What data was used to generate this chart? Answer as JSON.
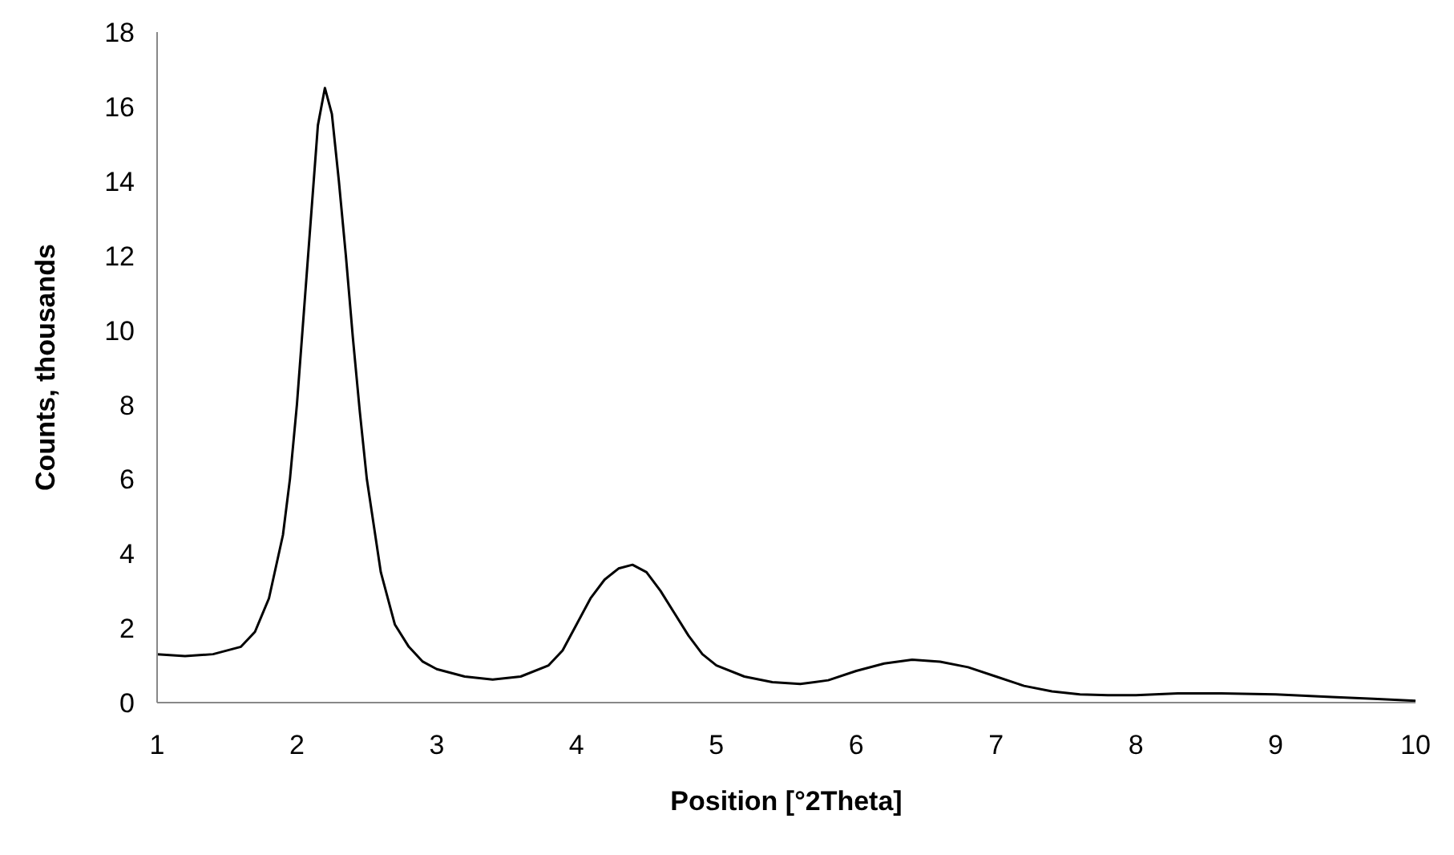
{
  "chart_data": {
    "type": "line",
    "xlabel": "Position [°2Theta]",
    "ylabel": "Counts, thousands",
    "xlim": [
      1,
      10
    ],
    "xticks": [
      1,
      2,
      3,
      4,
      5,
      6,
      7,
      8,
      9,
      10
    ],
    "ylim": [
      0,
      18
    ],
    "yticks": [
      0,
      2,
      4,
      6,
      8,
      10,
      12,
      14,
      16,
      18
    ],
    "grid": false,
    "legend": false,
    "marker": "none",
    "line_style": "solid",
    "series": [
      {
        "color": "#000000",
        "x": [
          1.0,
          1.2,
          1.4,
          1.6,
          1.7,
          1.8,
          1.9,
          1.95,
          2.0,
          2.05,
          2.1,
          2.15,
          2.2,
          2.25,
          2.3,
          2.35,
          2.4,
          2.45,
          2.5,
          2.6,
          2.7,
          2.8,
          2.9,
          3.0,
          3.2,
          3.4,
          3.6,
          3.8,
          3.9,
          4.0,
          4.1,
          4.2,
          4.3,
          4.4,
          4.5,
          4.6,
          4.7,
          4.8,
          4.9,
          5.0,
          5.2,
          5.4,
          5.6,
          5.8,
          6.0,
          6.2,
          6.4,
          6.6,
          6.8,
          7.0,
          7.2,
          7.4,
          7.6,
          7.8,
          8.0,
          8.3,
          8.6,
          9.0,
          9.4,
          9.7,
          10.0
        ],
        "values": [
          1.3,
          1.25,
          1.3,
          1.5,
          1.9,
          2.8,
          4.5,
          6,
          8,
          10.5,
          13,
          15.5,
          16.5,
          15.8,
          14,
          12,
          9.8,
          7.8,
          6,
          3.5,
          2.1,
          1.5,
          1.1,
          0.9,
          0.7,
          0.62,
          0.7,
          1.0,
          1.4,
          2.1,
          2.8,
          3.3,
          3.6,
          3.7,
          3.5,
          3.0,
          2.4,
          1.8,
          1.3,
          1.0,
          0.7,
          0.55,
          0.5,
          0.6,
          0.85,
          1.05,
          1.15,
          1.1,
          0.95,
          0.7,
          0.45,
          0.3,
          0.22,
          0.2,
          0.2,
          0.25,
          0.25,
          0.22,
          0.15,
          0.1,
          0.05
        ]
      }
    ]
  }
}
